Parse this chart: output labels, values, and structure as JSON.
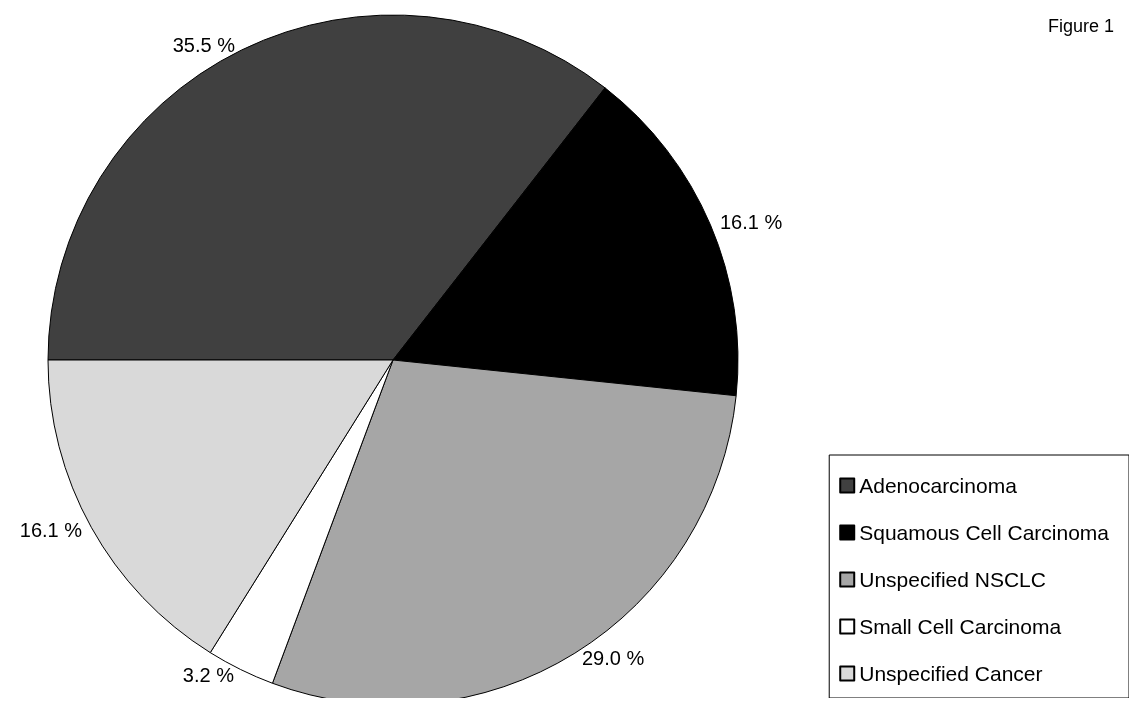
{
  "chart_data": {
    "type": "pie",
    "title": "Figure 1",
    "categories": [
      "Adenocarcinoma",
      "Squamous Cell Carcinoma",
      "Unspecified NSCLC",
      "Small Cell Carcinoma",
      "Unspecified Cancer"
    ],
    "values": [
      35.5,
      16.1,
      29.0,
      3.2,
      16.1
    ],
    "value_labels": [
      "35.5 %",
      "16.1 %",
      "29.0 %",
      "3.2 %",
      "16.1 %"
    ],
    "colors": [
      "#404040",
      "#000000",
      "#a6a6a6",
      "#ffffff",
      "#d9d9d9"
    ],
    "legend": "bottom right"
  }
}
